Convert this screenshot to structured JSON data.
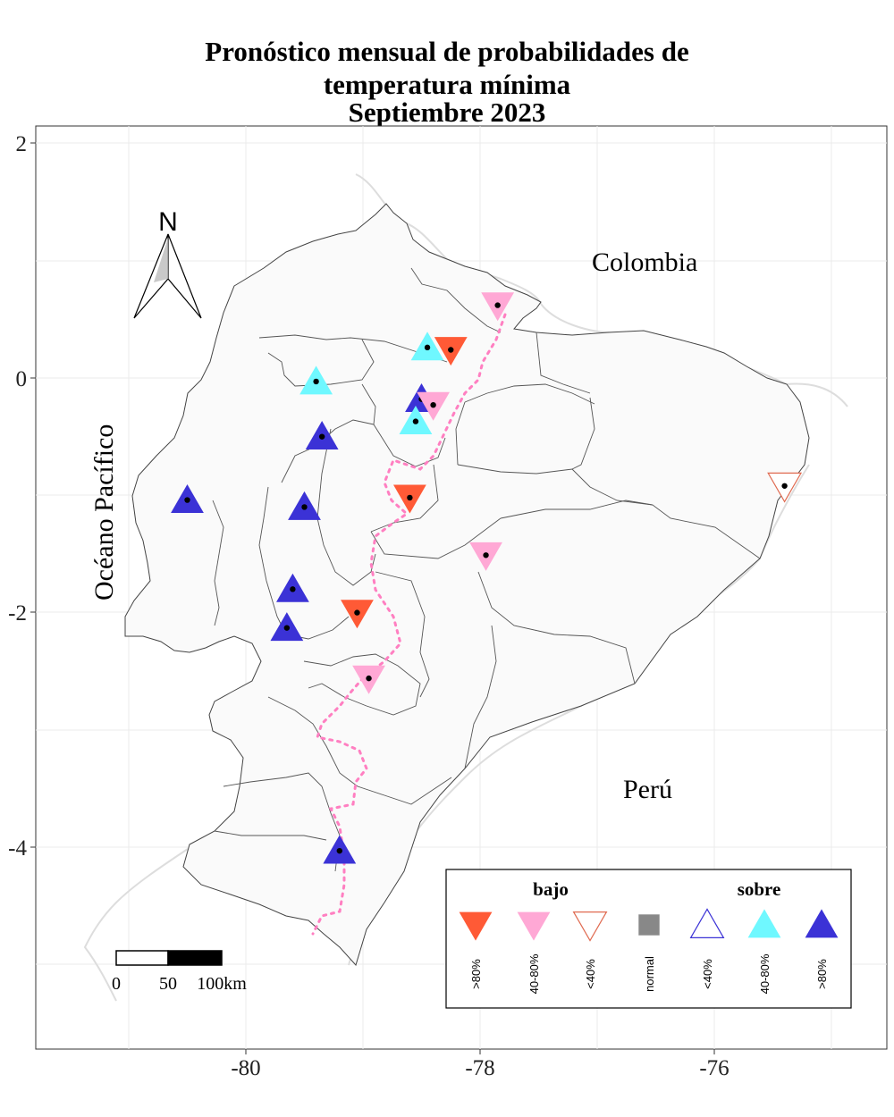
{
  "title": {
    "line1": "Pronóstico mensual de probabilidades de",
    "line2": "temperatura mínima",
    "line3": "Septiembre 2023"
  },
  "axes": {
    "x_ticks": [
      "-80",
      "-78",
      "-76"
    ],
    "y_ticks": [
      "2",
      "0",
      "-2",
      "-4"
    ]
  },
  "labels": {
    "colombia": "Colombia",
    "peru": "Perú",
    "ocean": "Océano Pacífico",
    "north": "N"
  },
  "scalebar": {
    "t0": "0",
    "t50": "50",
    "t100": "100km"
  },
  "legend": {
    "bajo": "bajo",
    "sobre": "sobre",
    "items": [
      {
        "key": "bajo_gt80",
        "label": ">80%",
        "color": "#ff5a36"
      },
      {
        "key": "bajo_40_80",
        "label": "40-80%",
        "color": "#ffa8d5"
      },
      {
        "key": "bajo_lt40",
        "label": "<40%",
        "color": "#e06a50"
      },
      {
        "key": "normal",
        "label": "normal",
        "color": "#888888"
      },
      {
        "key": "sobre_lt40",
        "label": "<40%",
        "color": "#3b32d6"
      },
      {
        "key": "sobre_40_80",
        "label": "40-80%",
        "color": "#6ff8ff"
      },
      {
        "key": "sobre_gt80",
        "label": ">80%",
        "color": "#3b32d6"
      }
    ]
  },
  "stations": [
    {
      "lon": -77.85,
      "lat": 0.62,
      "cat": "bajo_40_80"
    },
    {
      "lon": -78.45,
      "lat": 0.26,
      "cat": "sobre_40_80"
    },
    {
      "lon": -78.25,
      "lat": 0.24,
      "cat": "bajo_gt80"
    },
    {
      "lon": -79.4,
      "lat": -0.03,
      "cat": "sobre_40_80"
    },
    {
      "lon": -78.5,
      "lat": -0.18,
      "cat": "sobre_gt80"
    },
    {
      "lon": -78.4,
      "lat": -0.23,
      "cat": "bajo_40_80"
    },
    {
      "lon": -78.55,
      "lat": -0.37,
      "cat": "sobre_40_80"
    },
    {
      "lon": -79.35,
      "lat": -0.5,
      "cat": "sobre_gt80"
    },
    {
      "lon": -80.5,
      "lat": -1.04,
      "cat": "sobre_gt80"
    },
    {
      "lon": -79.5,
      "lat": -1.1,
      "cat": "sobre_gt80"
    },
    {
      "lon": -78.6,
      "lat": -1.02,
      "cat": "bajo_gt80"
    },
    {
      "lon": -75.4,
      "lat": -0.92,
      "cat": "bajo_lt40"
    },
    {
      "lon": -77.95,
      "lat": -1.51,
      "cat": "bajo_40_80"
    },
    {
      "lon": -79.6,
      "lat": -1.8,
      "cat": "sobre_gt80"
    },
    {
      "lon": -79.05,
      "lat": -2.0,
      "cat": "bajo_gt80"
    },
    {
      "lon": -79.65,
      "lat": -2.13,
      "cat": "sobre_gt80"
    },
    {
      "lon": -78.95,
      "lat": -2.56,
      "cat": "bajo_40_80"
    },
    {
      "lon": -79.2,
      "lat": -4.03,
      "cat": "sobre_gt80"
    }
  ]
}
